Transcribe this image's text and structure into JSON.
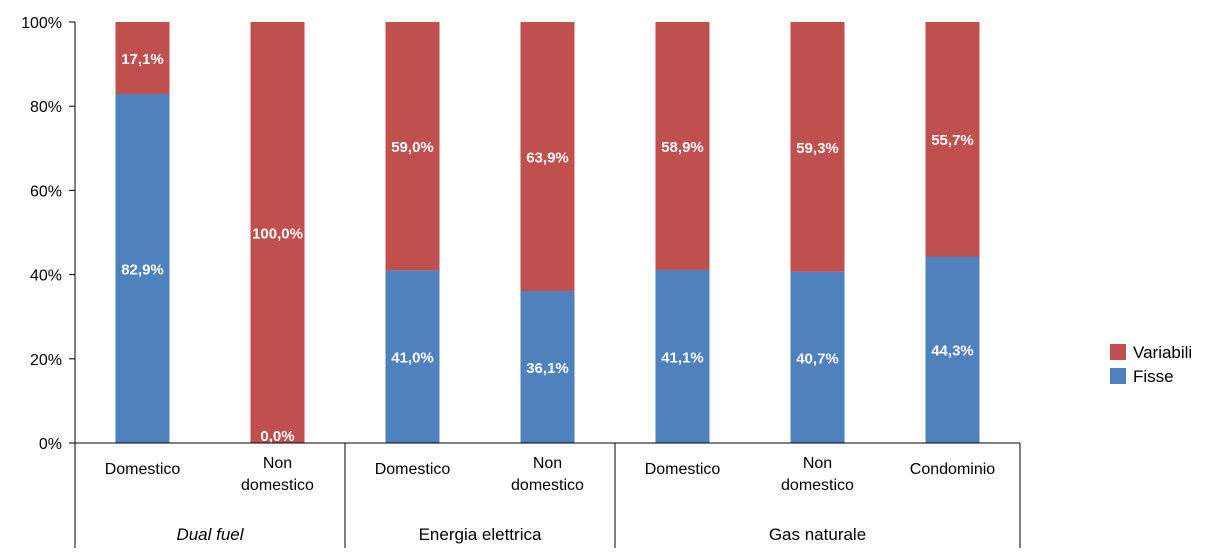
{
  "chart_data": {
    "type": "bar",
    "stacked": true,
    "categories": [
      "Domestico",
      "Non domestico",
      "Domestico",
      "Non domestico",
      "Domestico",
      "Non domestico",
      "Condominio"
    ],
    "groups": [
      {
        "label": "Dual fuel",
        "italic": true,
        "span": 2
      },
      {
        "label": "Energia elettrica",
        "italic": false,
        "span": 2
      },
      {
        "label": "Gas naturale",
        "italic": false,
        "span": 3
      }
    ],
    "series": [
      {
        "name": "Fisse",
        "color": "#4f81bd",
        "values": [
          82.9,
          0.0,
          41.0,
          36.1,
          41.1,
          40.7,
          44.3
        ],
        "labels": [
          "82,9%",
          "0,0%",
          "41,0%",
          "36,1%",
          "41,1%",
          "40,7%",
          "44,3%"
        ]
      },
      {
        "name": "Variabili",
        "color": "#c0504d",
        "values": [
          17.1,
          100.0,
          59.0,
          63.9,
          58.9,
          59.3,
          55.7
        ],
        "labels": [
          "17,1%",
          "100,0%",
          "59,0%",
          "63,9%",
          "58,9%",
          "59,3%",
          "55,7%"
        ]
      }
    ],
    "yticks": [
      "0%",
      "20%",
      "40%",
      "60%",
      "80%",
      "100%"
    ],
    "ylim": [
      0,
      100
    ],
    "legend": "right",
    "grid": false
  }
}
